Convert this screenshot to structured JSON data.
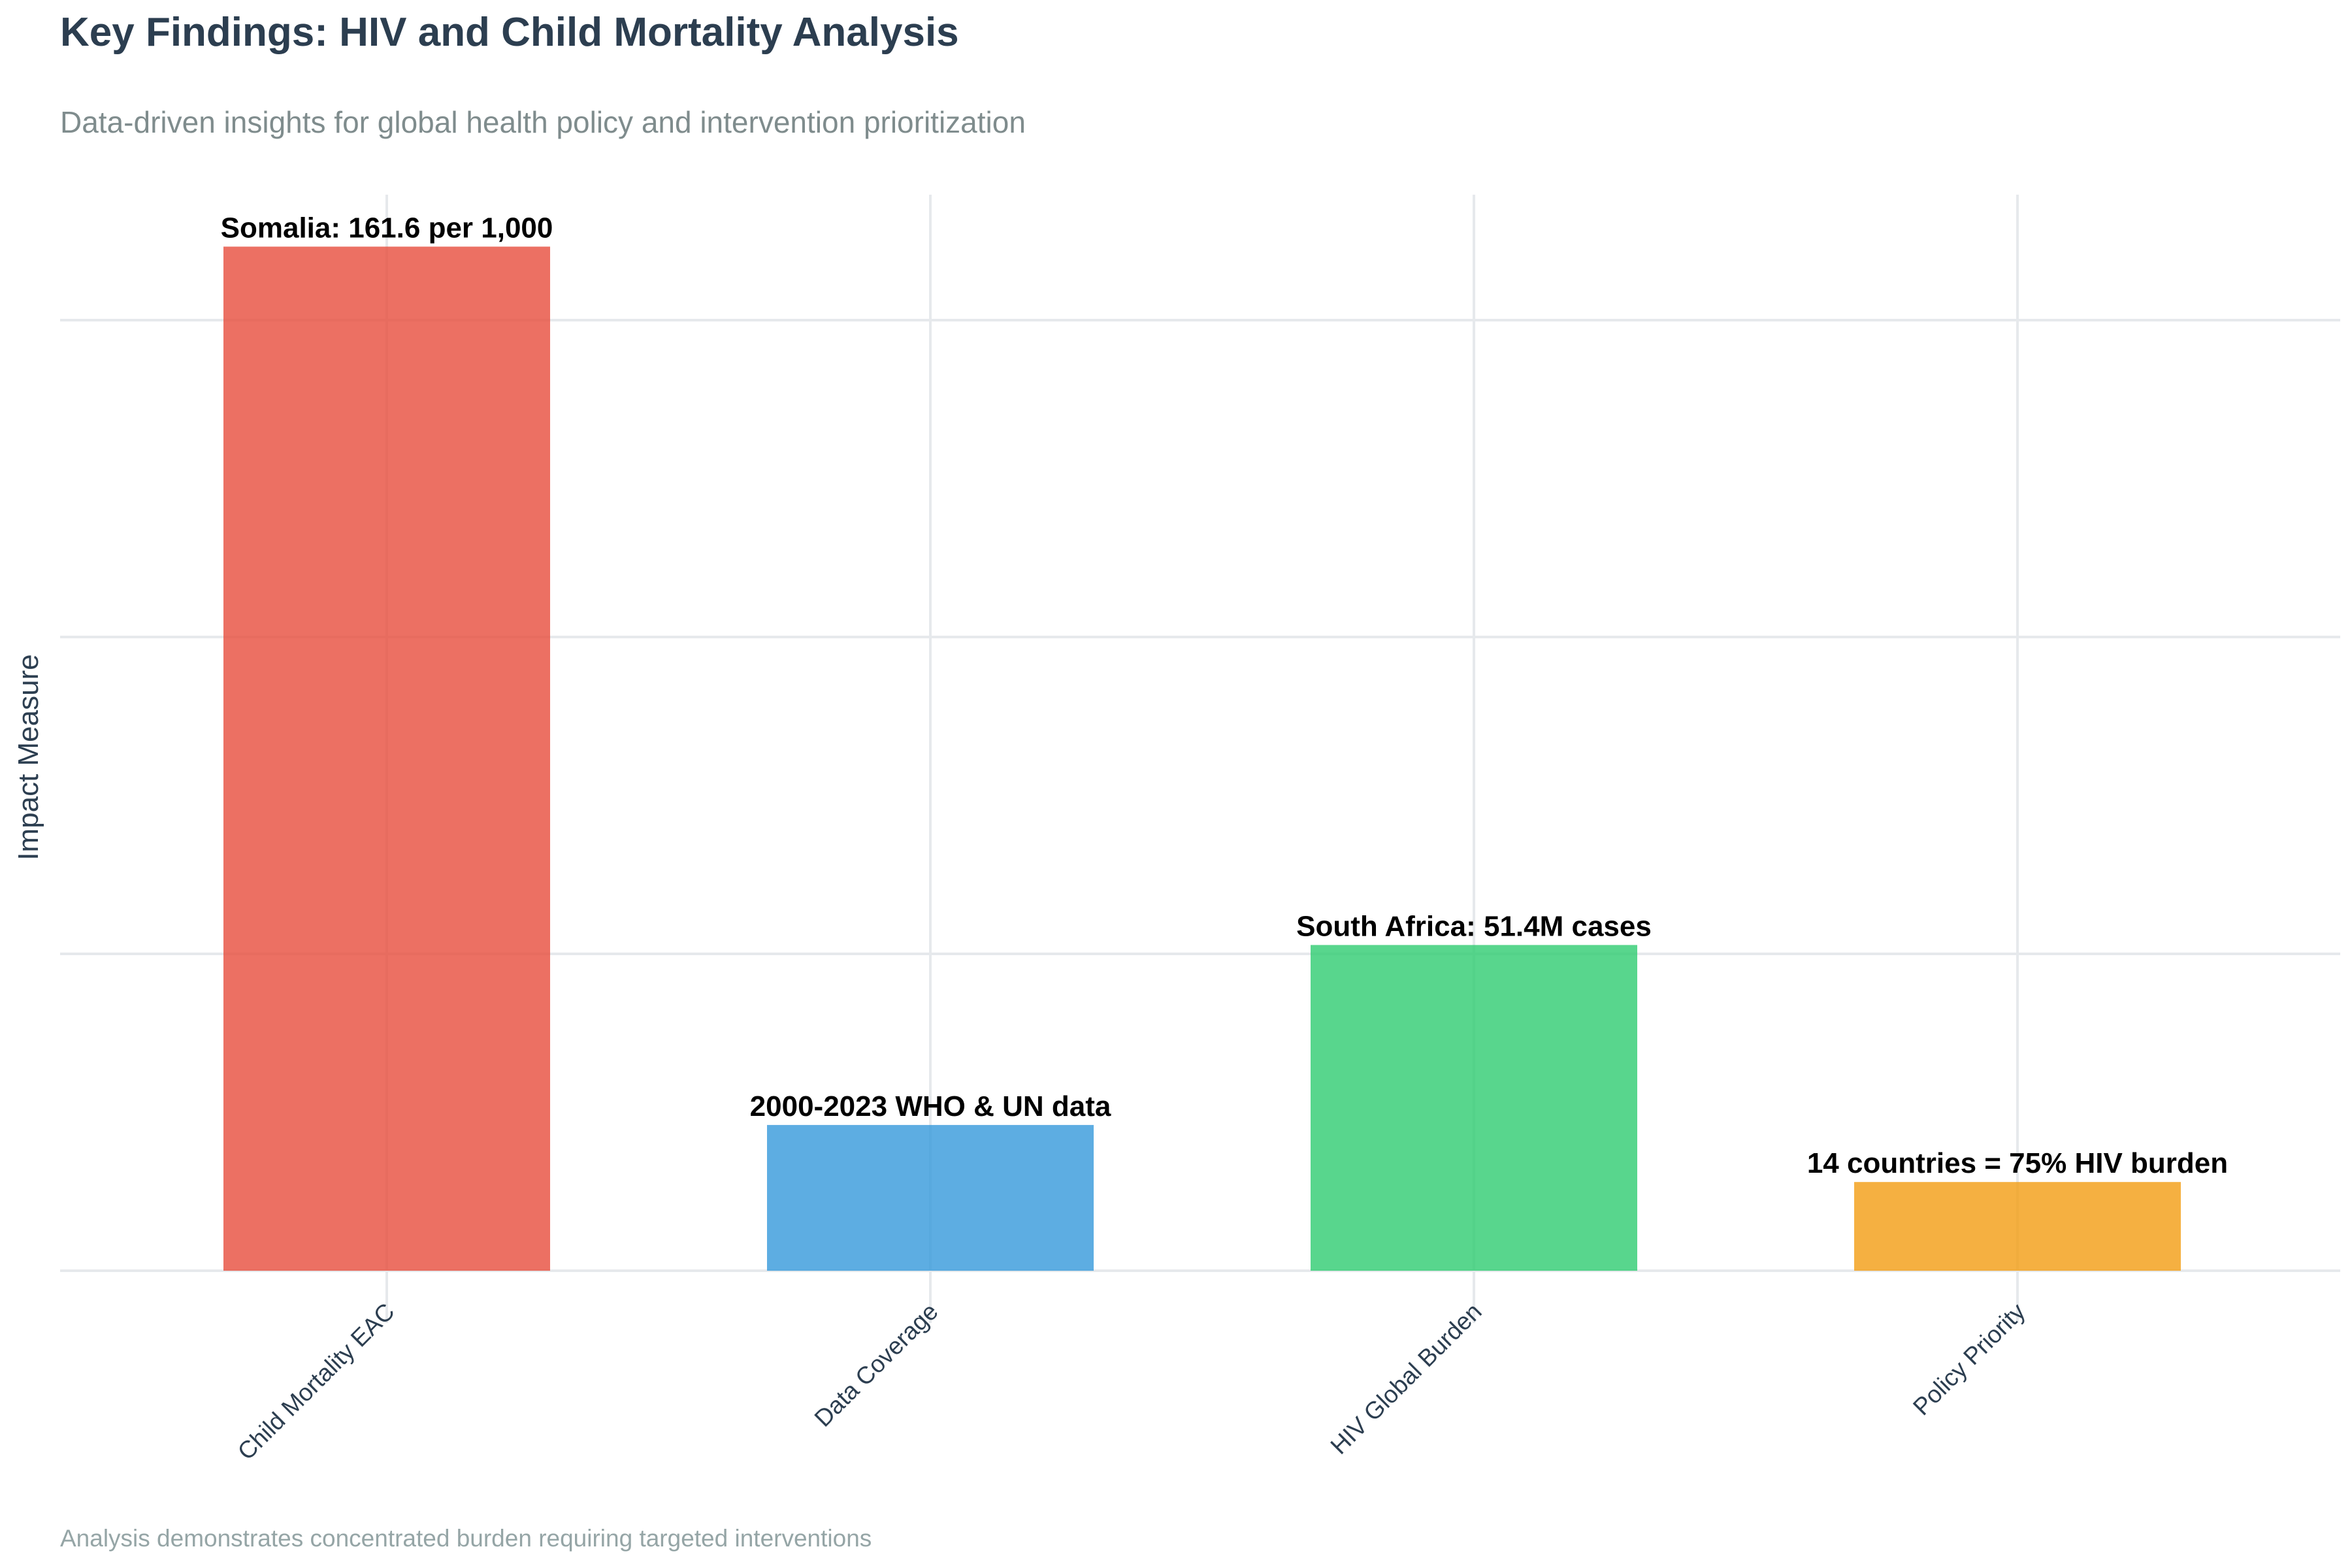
{
  "title": "Key Findings: HIV and Child Mortality Analysis",
  "subtitle": "Data-driven insights for global health policy and intervention prioritization",
  "caption": "Analysis demonstrates concentrated burden requiring targeted interventions",
  "chart_data": {
    "type": "bar",
    "title": "Key Findings: HIV and Child Mortality Analysis",
    "xlabel": "",
    "ylabel": "Impact Measure",
    "ylim": [
      0,
      1.7
    ],
    "grid": true,
    "categories": [
      "Child Mortality EAC",
      "Data Coverage",
      "HIV Global Burden",
      "Policy Priority"
    ],
    "values": [
      1.616,
      0.23,
      0.514,
      0.14
    ],
    "data_labels": [
      "Somalia: 161.6 per 1,000",
      "2000-2023 WHO & UN data",
      "South Africa: 51.4M cases",
      "14 countries = 75% HIV burden"
    ],
    "colors": [
      "#e74c3c",
      "#3498db",
      "#2ecc71",
      "#f39c12"
    ]
  }
}
